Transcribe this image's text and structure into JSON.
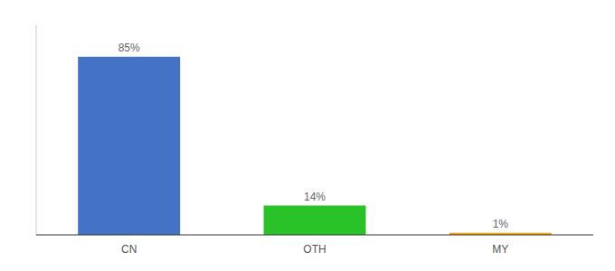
{
  "chart_data": {
    "type": "bar",
    "categories": [
      "CN",
      "OTH",
      "MY"
    ],
    "values": [
      85,
      14,
      1
    ],
    "value_labels": [
      "85%",
      "14%",
      "1%"
    ],
    "colors": [
      "#4472c4",
      "#29c229",
      "#e6a817"
    ],
    "ylim": [
      0,
      100
    ],
    "data_labels": true,
    "tick_labels": "x"
  }
}
